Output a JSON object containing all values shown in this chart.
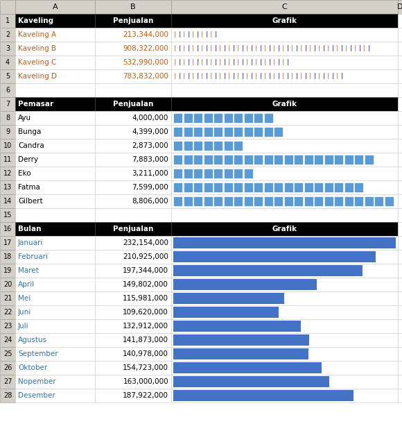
{
  "section1_header": [
    "Kaveling",
    "Penjualan",
    "Grafik"
  ],
  "section1_rows": [
    [
      "Kaveling A",
      "213,344,000",
      213344000
    ],
    [
      "Kaveling B",
      "908,322,000",
      908322000
    ],
    [
      "Kaveling C",
      "532,990,000",
      532990000
    ],
    [
      "Kaveling D",
      "783,832,000",
      783832000
    ]
  ],
  "section2_header": [
    "Pemasar",
    "Penjualan",
    "Grafik"
  ],
  "section2_rows": [
    [
      "Ayu",
      "4,000,000",
      4000000
    ],
    [
      "Bunga",
      "4,399,000",
      4399000
    ],
    [
      "Candra",
      "2,873,000",
      2873000
    ],
    [
      "Derry",
      "7,883,000",
      7883000
    ],
    [
      "Eko",
      "3,211,000",
      3211000
    ],
    [
      "Fatma",
      "7,599,000",
      7599000
    ],
    [
      "Gilbert",
      "8,806,000",
      8806000
    ]
  ],
  "section3_header": [
    "Bulan",
    "Penjualan",
    "Grafik"
  ],
  "section3_rows": [
    [
      "Januari",
      "232,154,000",
      232154000
    ],
    [
      "Februari",
      "210,925,000",
      210925000
    ],
    [
      "Maret",
      "197,344,000",
      197344000
    ],
    [
      "April",
      "149,802,000",
      149802000
    ],
    [
      "Mei",
      "115,981,000",
      115981000
    ],
    [
      "Juni",
      "109,620,000",
      109620000
    ],
    [
      "Juli",
      "132,912,000",
      132912000
    ],
    [
      "Agustus",
      "141,873,000",
      141873000
    ],
    [
      "September",
      "140,978,000",
      140978000
    ],
    [
      "Oktober",
      "154,723,000",
      154723000
    ],
    [
      "Nopember",
      "163,000,000",
      163000000
    ],
    [
      "Desember",
      "187,922,000",
      187922000
    ]
  ],
  "header_bg": "#000000",
  "header_fg": "#ffffff",
  "bar_color_s2": "#5b9bd5",
  "bar_color_s3": "#4472c4",
  "pipe_color1": "#c55a11",
  "pipe_color2": "#0000cc",
  "fig_bg": "#ffffff",
  "excel_col_header_bg": "#d4d0c8",
  "row_num_bg": "#d4d0c8",
  "s1_text_color": "#c55a11",
  "s3_text_color": "#2e75b6",
  "normal_text_color": "#000000"
}
